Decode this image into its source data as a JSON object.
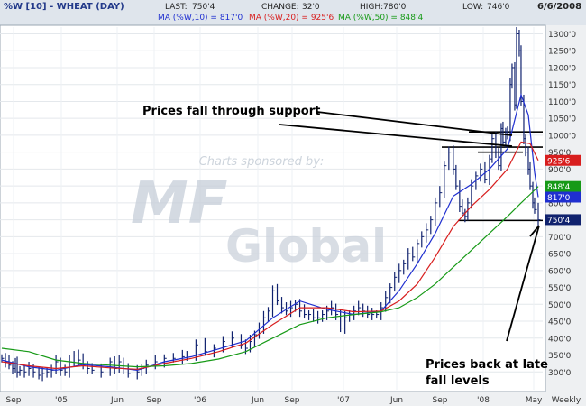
{
  "header": {
    "title": "%W [10] - WHEAT (DAY)",
    "last_label": "LAST:",
    "last": "750'4",
    "change_label": "CHANGE:",
    "change": "32'0",
    "high_label": "HIGH:",
    "high": "780'0",
    "low_label": "LOW:",
    "low": "746'0",
    "date": "6/6/2008"
  },
  "ma_legend": [
    {
      "label": "MA (%W,10) = 817'0",
      "color": "#1f2fd0"
    },
    {
      "label": "MA (%W,20) = 925'6",
      "color": "#d81e1e"
    },
    {
      "label": "MA (%W,50) = 848'4",
      "color": "#179a17"
    }
  ],
  "watermark": {
    "sponsor": "Charts sponsored by:"
  },
  "annotations": {
    "support": "Prices fall through support",
    "back_line1": "Prices back at late",
    "back_line2": "fall levels"
  },
  "chart_data": {
    "type": "line",
    "ylim": [
      250,
      1320
    ],
    "y_ticks": [
      "300'0",
      "350'0",
      "400'0",
      "450'0",
      "500'0",
      "550'0",
      "600'0",
      "650'0",
      "700'0",
      "750'0",
      "800'0",
      "850'0",
      "900'0",
      "950'0",
      "1000'0",
      "1050'0",
      "1100'0",
      "1150'0",
      "1200'0",
      "1250'0",
      "1300'0"
    ],
    "x_tick_labels": [
      "Sep",
      "'05",
      "Jun",
      "Sep",
      "'06",
      "Jun",
      "Sep",
      "'07",
      "Jun",
      "Sep",
      "'08",
      "May",
      "Weekly"
    ],
    "value_tags": [
      {
        "label": "925'6",
        "value": 925.75,
        "color": "#d81e1e"
      },
      {
        "label": "848'4",
        "value": 848.5,
        "color": "#179a17"
      },
      {
        "label": "817'0",
        "value": 817.0,
        "color": "#1f2fd0"
      },
      {
        "label": "750'4",
        "value": 750.5,
        "color": "#10226e"
      }
    ],
    "support_levels": [
      1010,
      965,
      950,
      748
    ],
    "series": [
      {
        "name": "%W",
        "color": "#10226e",
        "style": "bars",
        "t": [
          0,
          4,
          8,
          12,
          15,
          17,
          20,
          25,
          30,
          35,
          41,
          45,
          50,
          55,
          60,
          65,
          70,
          75,
          80,
          85,
          90,
          95,
          100,
          110,
          120,
          125,
          130,
          135,
          140,
          150,
          155,
          160,
          170,
          180,
          190,
          200,
          205,
          215,
          225,
          235,
          245,
          255,
          265,
          270,
          275,
          280,
          285,
          290,
          295,
          300,
          305,
          310,
          315,
          320,
          325,
          330,
          335,
          340,
          345,
          350,
          355,
          360,
          365,
          370,
          375,
          380,
          385,
          390,
          395,
          400,
          405,
          410,
          415,
          420,
          425,
          430,
          435,
          440,
          445,
          450,
          455,
          460,
          465,
          470,
          475,
          480,
          485,
          490,
          495,
          500,
          503,
          507,
          510,
          513,
          516,
          520,
          525,
          530,
          535,
          540,
          543,
          547,
          550,
          553,
          555,
          558,
          560,
          563,
          565,
          568,
          570,
          573,
          575,
          578,
          580,
          583,
          585,
          588,
          590,
          594
        ],
        "values": [
          340,
          330,
          320,
          310,
          325,
          300,
          305,
          300,
          310,
          300,
          290,
          295,
          300,
          305,
          330,
          305,
          300,
          330,
          350,
          335,
          320,
          310,
          305,
          300,
          330,
          310,
          330,
          310,
          295,
          300,
          310,
          320,
          330,
          340,
          340,
          345,
          350,
          380,
          360,
          370,
          390,
          400,
          380,
          370,
          390,
          410,
          430,
          460,
          480,
          540,
          510,
          490,
          480,
          490,
          500,
          480,
          470,
          470,
          460,
          460,
          470,
          480,
          490,
          470,
          430,
          460,
          470,
          480,
          490,
          480,
          470,
          470,
          470,
          490,
          520,
          550,
          580,
          600,
          620,
          650,
          640,
          680,
          700,
          720,
          750,
          800,
          830,
          910,
          950,
          900,
          850,
          790,
          770,
          760,
          800,
          850,
          880,
          900,
          870,
          930,
          990,
          950,
          910,
          1020,
          980,
          1010,
          1000,
          1150,
          1200,
          1090,
          1300,
          1250,
          1100,
          990,
          950,
          900,
          850,
          800,
          780,
          750
        ]
      },
      {
        "name": "MA (%W,10)",
        "color": "#1f2fd0",
        "t": [
          0,
          30,
          60,
          90,
          120,
          150,
          180,
          210,
          240,
          270,
          300,
          330,
          360,
          390,
          420,
          440,
          460,
          480,
          500,
          520,
          540,
          560,
          575,
          583,
          590,
          594
        ],
        "values": [
          335,
          315,
          305,
          322,
          315,
          305,
          330,
          345,
          368,
          392,
          460,
          510,
          485,
          470,
          480,
          540,
          620,
          710,
          820,
          855,
          900,
          960,
          1120,
          1060,
          890,
          817
        ]
      },
      {
        "name": "MA (%W,20)",
        "color": "#d81e1e",
        "t": [
          0,
          30,
          60,
          90,
          120,
          150,
          180,
          210,
          240,
          270,
          300,
          330,
          360,
          390,
          420,
          440,
          460,
          480,
          500,
          520,
          540,
          560,
          575,
          585,
          594
        ],
        "values": [
          330,
          318,
          310,
          318,
          312,
          308,
          325,
          340,
          360,
          385,
          440,
          490,
          490,
          478,
          480,
          510,
          560,
          640,
          730,
          790,
          840,
          900,
          980,
          975,
          925.75
        ]
      },
      {
        "name": "MA (%W,50)",
        "color": "#179a17",
        "t": [
          0,
          30,
          60,
          90,
          120,
          150,
          180,
          210,
          240,
          270,
          300,
          330,
          360,
          390,
          420,
          440,
          460,
          480,
          500,
          520,
          540,
          560,
          575,
          585,
          594
        ],
        "values": [
          370,
          360,
          335,
          325,
          320,
          315,
          318,
          325,
          338,
          360,
          400,
          440,
          460,
          470,
          478,
          490,
          520,
          560,
          610,
          660,
          710,
          760,
          800,
          825,
          848.5
        ]
      }
    ]
  }
}
